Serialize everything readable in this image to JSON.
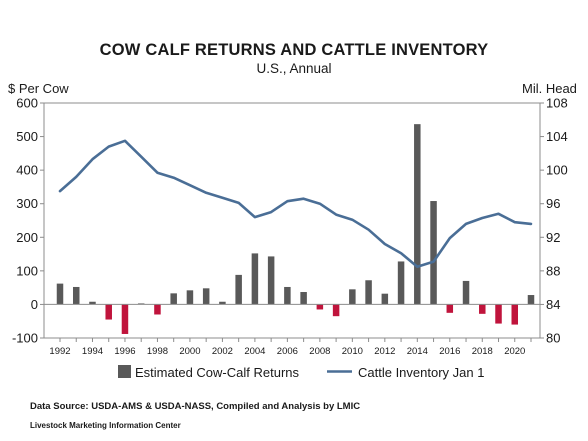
{
  "chart_data": {
    "type": "bar",
    "title": "COW CALF RETURNS AND CATTLE INVENTORY",
    "subtitle": "U.S., Annual",
    "ylabel_left": "$ Per Cow",
    "ylabel_right": "Mil. Head",
    "ylim_left": [
      -100,
      600
    ],
    "ylim_right": [
      80,
      108
    ],
    "yticks_left": [
      -100,
      0,
      100,
      200,
      300,
      400,
      500,
      600
    ],
    "yticks_right": [
      80,
      84,
      88,
      92,
      96,
      100,
      104,
      108
    ],
    "x": [
      1992,
      1993,
      1994,
      1995,
      1996,
      1997,
      1998,
      1999,
      2000,
      2001,
      2002,
      2003,
      2004,
      2005,
      2006,
      2007,
      2008,
      2009,
      2010,
      2011,
      2012,
      2013,
      2014,
      2015,
      2016,
      2017,
      2018,
      2019,
      2020,
      2021
    ],
    "xtick_labels": [
      "1992",
      "1994",
      "1996",
      "1998",
      "2000",
      "2002",
      "2004",
      "2006",
      "2008",
      "2010",
      "2012",
      "2014",
      "2016",
      "2018",
      "2020"
    ],
    "grid": false,
    "legend_position": "bottom",
    "series": [
      {
        "name": "Estimated Cow-Calf Returns",
        "type": "bar",
        "axis": "left",
        "values": [
          62,
          52,
          8,
          -45,
          -88,
          3,
          -30,
          33,
          42,
          48,
          8,
          88,
          152,
          143,
          52,
          37,
          -15,
          -35,
          45,
          72,
          32,
          128,
          537,
          308,
          -25,
          70,
          -28,
          -57,
          -60,
          28
        ]
      },
      {
        "name": "Cattle Inventory Jan 1",
        "type": "line",
        "axis": "right",
        "values": [
          97.5,
          99.2,
          101.3,
          102.8,
          103.5,
          101.6,
          99.7,
          99.1,
          98.2,
          97.3,
          96.7,
          96.1,
          94.4,
          95.0,
          96.3,
          96.6,
          96.0,
          94.7,
          94.1,
          92.9,
          91.2,
          90.1,
          88.5,
          89.1,
          91.9,
          93.6,
          94.3,
          94.8,
          93.8,
          93.6
        ]
      }
    ],
    "colors": {
      "bar_positive": "#595959",
      "bar_negative": "#c0143c",
      "line": "#4a6e96"
    }
  },
  "footer": {
    "source": "Data Source:  USDA-AMS & USDA-NASS, Compiled and Analysis by LMIC",
    "org": "Livestock Marketing Information Center"
  }
}
